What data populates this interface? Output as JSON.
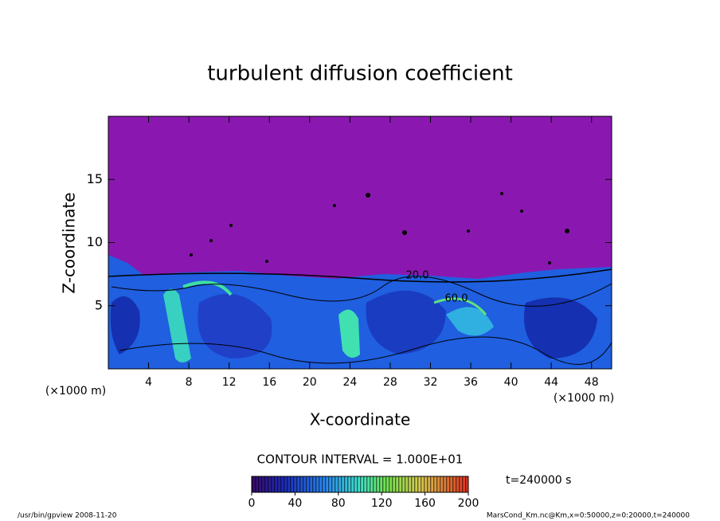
{
  "chart_data": {
    "type": "contour",
    "title": "turbulent diffusion coefficient",
    "x_label": "X-coordinate",
    "y_label": "Z-coordinate",
    "x_unit": "(×1000 m)",
    "y_unit": "(×1000 m)",
    "xlim": [
      0,
      50
    ],
    "xticks": [
      4,
      8,
      12,
      16,
      20,
      24,
      28,
      32,
      36,
      40,
      44,
      48
    ],
    "ylim": [
      0,
      20
    ],
    "yticks": [
      5,
      10,
      15
    ],
    "contour_labels": [
      "20.0",
      "60.0"
    ],
    "contour_interval": "CONTOUR INTERVAL = 1.000E+01",
    "colorbar": {
      "lim": [
        0,
        200
      ],
      "ticks": [
        0,
        40,
        80,
        120,
        160,
        200
      ]
    },
    "time_label": "t=240000 s",
    "footer_left": "/usr/bin/gpview   2008-11-20",
    "footer_right": "MarsCond_Km.nc@Km,x=0:50000,z=0:20000,t=240000"
  }
}
